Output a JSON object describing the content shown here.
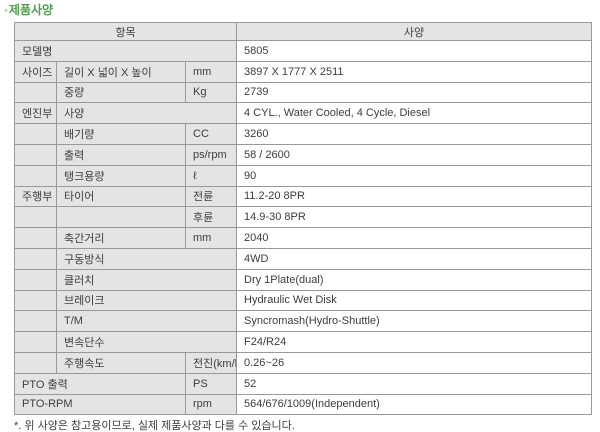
{
  "page": {
    "title_bullet": "◦",
    "title": "제품사양",
    "footnote": "*. 위 사양은 참고용이므로, 실제 제품사양과 다를 수 있습니다."
  },
  "colors": {
    "title_green": "#4fa04f",
    "header_bg": "#e4e4e4",
    "label_cell_bg": "#e4e4e4",
    "value_cell_bg": "#ffffff",
    "border": "#999999",
    "text": "#3d3d3d"
  },
  "table": {
    "headers": [
      "항목",
      "사양"
    ],
    "rows": [
      {
        "cells": [
          {
            "t": "모델명",
            "c": 3
          },
          {
            "t": "5805",
            "v": true
          }
        ]
      },
      {
        "cells": [
          {
            "t": "사이즈"
          },
          {
            "t": "길이 X 넓이 X 높이"
          },
          {
            "t": "mm"
          },
          {
            "t": "3897 X 1777 X 2511",
            "v": true
          }
        ]
      },
      {
        "cells": [
          {
            "t": ""
          },
          {
            "t": "중량"
          },
          {
            "t": "Kg"
          },
          {
            "t": "2739",
            "v": true
          }
        ]
      },
      {
        "cells": [
          {
            "t": "엔진부"
          },
          {
            "t": "사양",
            "c": 2
          },
          {
            "t": "4 CYL., Water Cooled, 4 Cycle, Diesel",
            "v": true
          }
        ]
      },
      {
        "cells": [
          {
            "t": ""
          },
          {
            "t": "배기량"
          },
          {
            "t": "CC"
          },
          {
            "t": "3260",
            "v": true
          }
        ]
      },
      {
        "cells": [
          {
            "t": ""
          },
          {
            "t": "출력"
          },
          {
            "t": "ps/rpm"
          },
          {
            "t": "58 / 2600",
            "v": true
          }
        ]
      },
      {
        "cells": [
          {
            "t": ""
          },
          {
            "t": "탱크용량"
          },
          {
            "t": "ℓ"
          },
          {
            "t": "90",
            "v": true
          }
        ]
      },
      {
        "cells": [
          {
            "t": "주행부"
          },
          {
            "t": "타이어"
          },
          {
            "t": "전륜"
          },
          {
            "t": "11.2-20 8PR",
            "v": true
          }
        ]
      },
      {
        "cells": [
          {
            "t": ""
          },
          {
            "t": ""
          },
          {
            "t": "후륜"
          },
          {
            "t": "14.9-30 8PR",
            "v": true
          }
        ]
      },
      {
        "cells": [
          {
            "t": ""
          },
          {
            "t": "축간거리"
          },
          {
            "t": "mm"
          },
          {
            "t": "2040",
            "v": true
          }
        ]
      },
      {
        "cells": [
          {
            "t": ""
          },
          {
            "t": "구동방식",
            "c": 2
          },
          {
            "t": "4WD",
            "v": true
          }
        ]
      },
      {
        "cells": [
          {
            "t": ""
          },
          {
            "t": "클러치",
            "c": 2
          },
          {
            "t": "Dry 1Plate(dual)",
            "v": true
          }
        ]
      },
      {
        "cells": [
          {
            "t": ""
          },
          {
            "t": "브레이크",
            "c": 2
          },
          {
            "t": "Hydraulic Wet Disk",
            "v": true
          }
        ]
      },
      {
        "cells": [
          {
            "t": ""
          },
          {
            "t": "T/M",
            "c": 2
          },
          {
            "t": "Syncromash(Hydro-Shuttle)",
            "v": true
          }
        ]
      },
      {
        "cells": [
          {
            "t": ""
          },
          {
            "t": "변속단수",
            "c": 2
          },
          {
            "t": "F24/R24",
            "v": true
          }
        ]
      },
      {
        "cells": [
          {
            "t": ""
          },
          {
            "t": "주행속도"
          },
          {
            "t": "전진(km/h)"
          },
          {
            "t": "0.26~26",
            "v": true
          }
        ]
      },
      {
        "cells": [
          {
            "t": "PTO 출력",
            "c": 2
          },
          {
            "t": "PS"
          },
          {
            "t": "52",
            "v": true
          }
        ]
      },
      {
        "cells": [
          {
            "t": "PTO-RPM",
            "c": 2
          },
          {
            "t": "rpm"
          },
          {
            "t": "564/676/1009(Independent)",
            "v": true
          }
        ]
      }
    ]
  }
}
